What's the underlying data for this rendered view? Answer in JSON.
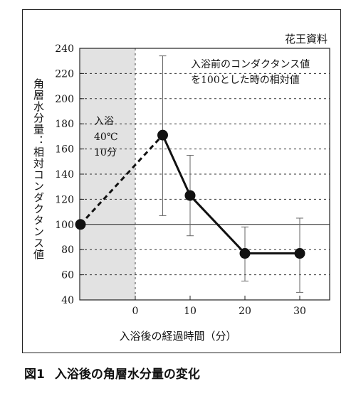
{
  "source_note": "花王資料",
  "caption": {
    "number": "図1",
    "title": "入浴後の角層水分量の変化"
  },
  "chart_data": {
    "type": "line",
    "xlabel": "入浴後の経過時間（分）",
    "ylabel": "角層水分量：相対コンダクタンス値",
    "ylim": [
      40,
      240
    ],
    "yticks": [
      40,
      60,
      80,
      100,
      120,
      140,
      160,
      180,
      200,
      220,
      240
    ],
    "xlim": [
      -10,
      35
    ],
    "xticks": [
      0,
      10,
      20,
      30
    ],
    "grid": "horizontal dashed",
    "reference_line": 100,
    "bath_period": {
      "x": [
        -10,
        0
      ],
      "label_lines": [
        "入浴",
        "40℃",
        "10分"
      ]
    },
    "annotation_lines": [
      "入浴前のコンダクタンス値",
      "を100とした時の相対値"
    ],
    "points": [
      {
        "x": -10,
        "y": 100,
        "err_low": null,
        "err_high": null
      },
      {
        "x": 5,
        "y": 171,
        "err_low": 107,
        "err_high": 234
      },
      {
        "x": 10,
        "y": 123,
        "err_low": 91,
        "err_high": 155
      },
      {
        "x": 20,
        "y": 77,
        "err_low": 55,
        "err_high": 98
      },
      {
        "x": 30,
        "y": 77,
        "err_low": 46,
        "err_high": 105
      }
    ]
  }
}
